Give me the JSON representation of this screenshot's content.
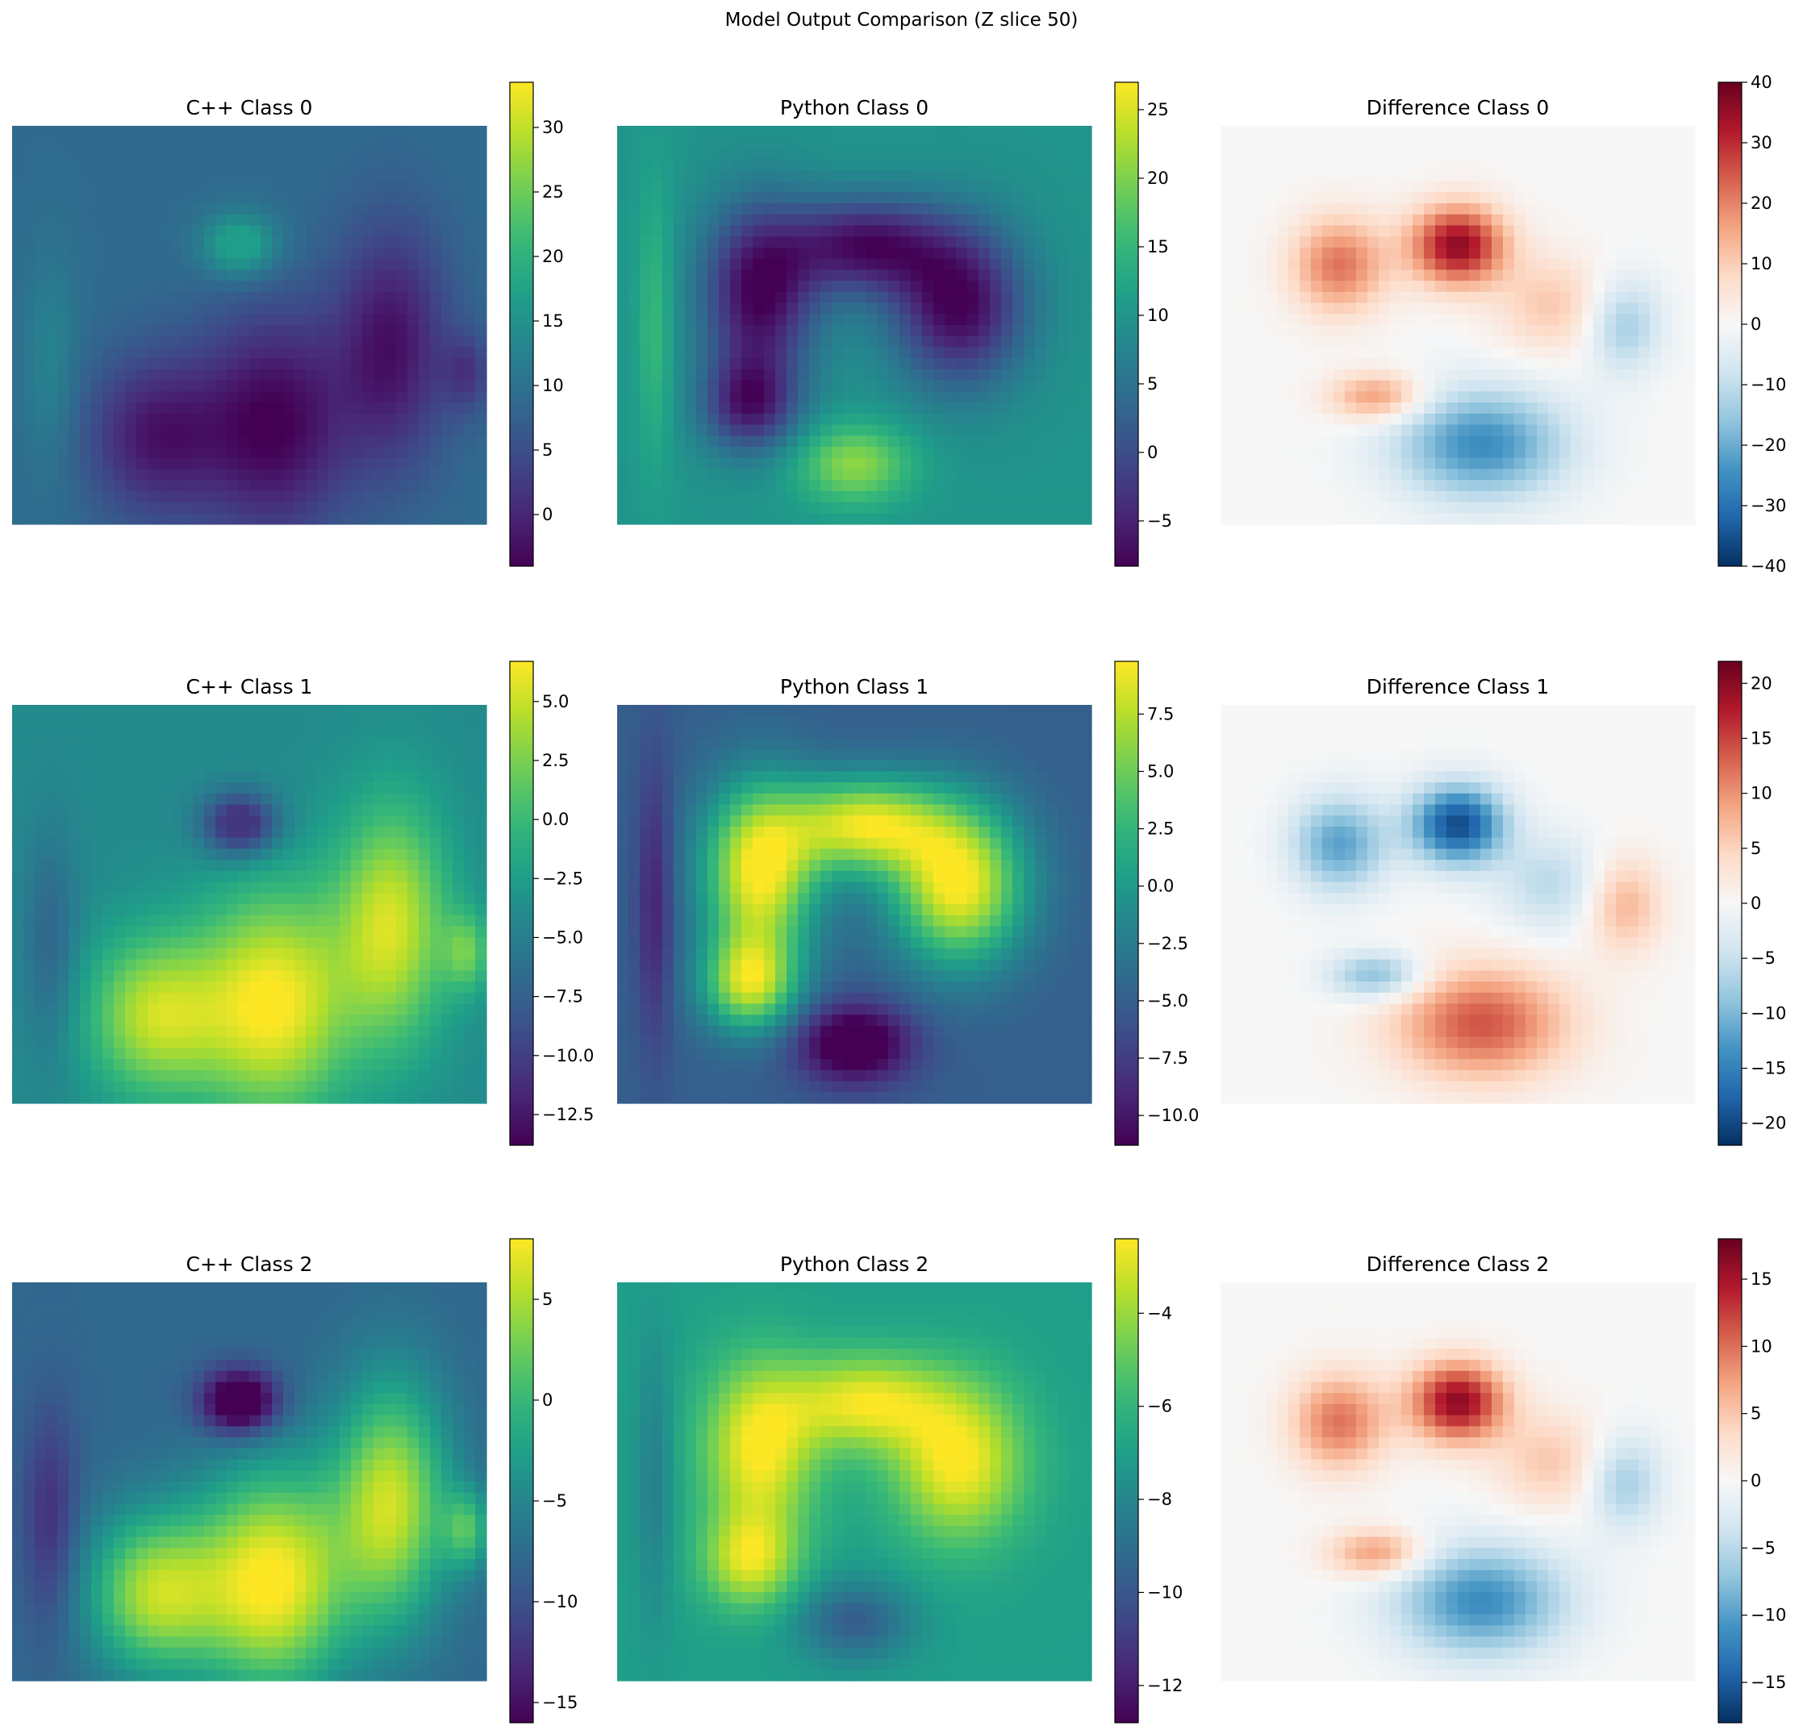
{
  "figure": {
    "title": "Model Output Comparison (Z slice 50)"
  },
  "colors": {
    "viridis": [
      "#440154",
      "#482878",
      "#3e4a89",
      "#31688e",
      "#26828e",
      "#1f9e89",
      "#35b779",
      "#6ece58",
      "#b5de2b",
      "#fde725"
    ],
    "rdbu_r": [
      "#053061",
      "#2166ac",
      "#4393c3",
      "#92c5de",
      "#d1e5f0",
      "#f7f7f7",
      "#fddbc7",
      "#f4a582",
      "#d6604d",
      "#b2182b",
      "#67001f"
    ]
  },
  "chart_data": [
    {
      "type": "heatmap",
      "title": "C++ Class 0",
      "colormap": "viridis",
      "pattern": "cpp",
      "high_region_sign": -1,
      "vmin": -4,
      "vmax": 33.5,
      "background_value": 9,
      "colorbar_ticks": [
        "30",
        "25",
        "20",
        "15",
        "10",
        "5",
        "0"
      ],
      "colorbar_tick_values": [
        30,
        25,
        20,
        15,
        10,
        5,
        0
      ],
      "axes": "off"
    },
    {
      "type": "heatmap",
      "title": "Python Class 0",
      "colormap": "viridis",
      "pattern": "python",
      "high_region_sign": -1,
      "vmin": -8.3,
      "vmax": 27,
      "background_value": 10,
      "colorbar_ticks": [
        "25",
        "20",
        "15",
        "10",
        "5",
        "0",
        "−5"
      ],
      "colorbar_tick_values": [
        25,
        20,
        15,
        10,
        5,
        0,
        -5
      ],
      "axes": "off"
    },
    {
      "type": "heatmap",
      "title": "Difference Class 0",
      "colormap": "rdbu_r",
      "pattern": "diff",
      "high_region_sign": 1,
      "vmin": -40,
      "vmax": 40,
      "background_value": 0,
      "colorbar_ticks": [
        "40",
        "30",
        "20",
        "10",
        "0",
        "−10",
        "−20",
        "−30",
        "−40"
      ],
      "colorbar_tick_values": [
        40,
        30,
        20,
        10,
        0,
        -10,
        -20,
        -30,
        -40
      ],
      "axes": "off"
    },
    {
      "type": "heatmap",
      "title": "C++ Class 1",
      "colormap": "viridis",
      "pattern": "cpp",
      "high_region_sign": 1,
      "vmin": -13.8,
      "vmax": 6.7,
      "background_value": -4,
      "colorbar_ticks": [
        "5.0",
        "2.5",
        "0.0",
        "−2.5",
        "−5.0",
        "−7.5",
        "−10.0",
        "−12.5"
      ],
      "colorbar_tick_values": [
        5.0,
        2.5,
        0.0,
        -2.5,
        -5.0,
        -7.5,
        -10.0,
        -12.5
      ],
      "axes": "off"
    },
    {
      "type": "heatmap",
      "title": "Python Class 1",
      "colormap": "viridis",
      "pattern": "python",
      "high_region_sign": 1,
      "vmin": -11.3,
      "vmax": 9.8,
      "background_value": -5,
      "colorbar_ticks": [
        "7.5",
        "5.0",
        "2.5",
        "0.0",
        "−2.5",
        "−5.0",
        "−7.5",
        "−10.0"
      ],
      "colorbar_tick_values": [
        7.5,
        5.0,
        2.5,
        0.0,
        -2.5,
        -5.0,
        -7.5,
        -10.0
      ],
      "axes": "off"
    },
    {
      "type": "heatmap",
      "title": "Difference Class 1",
      "colormap": "rdbu_r",
      "pattern": "diff",
      "high_region_sign": -1,
      "vmin": -22,
      "vmax": 22,
      "background_value": 0,
      "colorbar_ticks": [
        "20",
        "15",
        "10",
        "5",
        "0",
        "−5",
        "−10",
        "−15",
        "−20"
      ],
      "colorbar_tick_values": [
        20,
        15,
        10,
        5,
        0,
        -5,
        -10,
        -15,
        -20
      ],
      "axes": "off"
    },
    {
      "type": "heatmap",
      "title": "C++ Class 2",
      "colormap": "viridis",
      "pattern": "cpp",
      "high_region_sign": 1,
      "vmin": -16,
      "vmax": 8,
      "background_value": -8,
      "colorbar_ticks": [
        "5",
        "0",
        "−5",
        "−10",
        "−15"
      ],
      "colorbar_tick_values": [
        5,
        0,
        -5,
        -10,
        -15
      ],
      "axes": "off"
    },
    {
      "type": "heatmap",
      "title": "Python Class 2",
      "colormap": "viridis",
      "pattern": "python",
      "high_region_sign": 1,
      "vmin": -12.8,
      "vmax": -2.4,
      "background_value": -7,
      "colorbar_ticks": [
        "−4",
        "−6",
        "−8",
        "−10",
        "−12"
      ],
      "colorbar_tick_values": [
        -4,
        -6,
        -8,
        -10,
        -12
      ],
      "axes": "off"
    },
    {
      "type": "heatmap",
      "title": "Difference Class 2",
      "colormap": "rdbu_r",
      "pattern": "diff",
      "high_region_sign": 1,
      "vmin": -18,
      "vmax": 18,
      "background_value": 0,
      "colorbar_ticks": [
        "15",
        "10",
        "5",
        "0",
        "−5",
        "−10",
        "−15"
      ],
      "colorbar_tick_values": [
        15,
        10,
        5,
        0,
        -5,
        -10,
        -15
      ],
      "axes": "off"
    }
  ]
}
